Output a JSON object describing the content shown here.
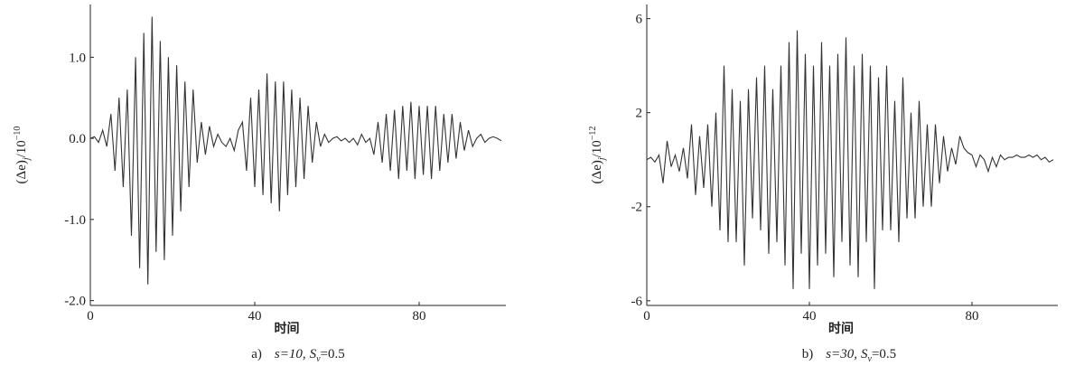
{
  "chart_data": [
    {
      "type": "line",
      "color": "#333333",
      "ylabel": {
        "main": "(Δe)",
        "sub": "j",
        "base": "/10",
        "sup": "−10"
      },
      "xlabel": "时间",
      "caption": {
        "label": "a)",
        "param1": "s=10,",
        "param2": "S",
        "param2_sub": "v",
        "param2_value": "=0.5"
      },
      "xlim": [
        0,
        100
      ],
      "xticks": [
        0,
        40,
        80
      ],
      "ylim": [
        -2.06,
        1.65
      ],
      "yticks": [
        {
          "value": 1,
          "label": "1.0"
        },
        {
          "value": 0,
          "label": "0.0"
        },
        {
          "value": -1,
          "label": "-1.0"
        },
        {
          "value": -2,
          "label": "-2.0"
        }
      ],
      "x": [
        0,
        1,
        2,
        3,
        4,
        5,
        6,
        7,
        8,
        9,
        10,
        11,
        12,
        13,
        14,
        15,
        16,
        17,
        18,
        19,
        20,
        21,
        22,
        23,
        24,
        25,
        26,
        27,
        28,
        29,
        30,
        31,
        32,
        33,
        34,
        35,
        36,
        37,
        38,
        39,
        40,
        41,
        42,
        43,
        44,
        45,
        46,
        47,
        48,
        49,
        50,
        51,
        52,
        53,
        54,
        55,
        56,
        57,
        58,
        59,
        60,
        61,
        62,
        63,
        64,
        65,
        66,
        67,
        68,
        69,
        70,
        71,
        72,
        73,
        74,
        75,
        76,
        77,
        78,
        79,
        80,
        81,
        82,
        83,
        84,
        85,
        86,
        87,
        88,
        89,
        90,
        91,
        92,
        93,
        94,
        95,
        96,
        97,
        98,
        99,
        100
      ],
      "values": [
        0.0,
        0.02,
        -0.05,
        0.1,
        -0.1,
        0.3,
        -0.4,
        0.5,
        -0.6,
        0.6,
        -1.2,
        1.0,
        -1.6,
        1.3,
        -1.8,
        1.5,
        -1.4,
        1.2,
        -1.5,
        1.0,
        -1.2,
        0.9,
        -0.9,
        0.7,
        -0.6,
        0.6,
        -0.3,
        0.2,
        -0.2,
        0.15,
        -0.1,
        0.05,
        -0.05,
        -0.1,
        0.0,
        -0.15,
        0.1,
        0.2,
        -0.4,
        0.5,
        -0.6,
        0.6,
        -0.7,
        0.8,
        -0.8,
        0.7,
        -0.9,
        0.7,
        -0.7,
        0.6,
        -0.6,
        0.5,
        -0.5,
        0.4,
        -0.3,
        0.2,
        -0.1,
        0.05,
        -0.05,
        0.0,
        0.02,
        -0.03,
        0.0,
        -0.05,
        0.0,
        -0.08,
        0.05,
        -0.05,
        0.0,
        -0.2,
        0.2,
        -0.3,
        0.3,
        -0.4,
        0.35,
        -0.5,
        0.4,
        -0.4,
        0.45,
        -0.5,
        0.4,
        -0.45,
        0.4,
        -0.5,
        0.4,
        -0.4,
        0.3,
        -0.3,
        0.3,
        -0.25,
        0.2,
        -0.15,
        0.1,
        -0.1,
        0.0,
        0.05,
        -0.05,
        0.0,
        0.02,
        0.0,
        -0.03
      ]
    },
    {
      "type": "line",
      "color": "#333333",
      "ylabel": {
        "main": "(Δe)",
        "sub": "j",
        "base": "/10",
        "sup": "−12"
      },
      "xlabel": "时间",
      "caption": {
        "label": "b)",
        "param1": "s=30,",
        "param2": "S",
        "param2_sub": "v",
        "param2_value": "=0.5"
      },
      "xlim": [
        0,
        100
      ],
      "xticks": [
        0,
        40,
        80
      ],
      "ylim": [
        -6.2,
        6.6
      ],
      "yticks": [
        6,
        2,
        -2,
        -6
      ],
      "x": [
        0,
        1,
        2,
        3,
        4,
        5,
        6,
        7,
        8,
        9,
        10,
        11,
        12,
        13,
        14,
        15,
        16,
        17,
        18,
        19,
        20,
        21,
        22,
        23,
        24,
        25,
        26,
        27,
        28,
        29,
        30,
        31,
        32,
        33,
        34,
        35,
        36,
        37,
        38,
        39,
        40,
        41,
        42,
        43,
        44,
        45,
        46,
        47,
        48,
        49,
        50,
        51,
        52,
        53,
        54,
        55,
        56,
        57,
        58,
        59,
        60,
        61,
        62,
        63,
        64,
        65,
        66,
        67,
        68,
        69,
        70,
        71,
        72,
        73,
        74,
        75,
        76,
        77,
        78,
        79,
        80,
        81,
        82,
        83,
        84,
        85,
        86,
        87,
        88,
        89,
        90,
        91,
        92,
        93,
        94,
        95,
        96,
        97,
        98,
        99,
        100
      ],
      "values": [
        0,
        0.1,
        -0.1,
        0.2,
        -1,
        0.8,
        -0.3,
        0.2,
        -0.5,
        0.5,
        -0.8,
        1.5,
        -1.5,
        1,
        -1.2,
        1.5,
        -2,
        2,
        -3,
        4,
        -3.5,
        3,
        -3.5,
        2.5,
        -4.5,
        3,
        -2.5,
        3.5,
        -3,
        4,
        -4,
        3,
        -3.5,
        4,
        -4.5,
        5,
        -5.5,
        5.5,
        -4,
        4.5,
        -5.5,
        4,
        -4.5,
        5,
        -4,
        4,
        -5,
        4.5,
        -3.5,
        5.2,
        -4.5,
        4,
        -5,
        4.5,
        -3.5,
        4,
        -5.5,
        3.5,
        -3,
        4,
        -3,
        2.5,
        -3.5,
        3.5,
        -2.5,
        2,
        -2.5,
        2.5,
        -2,
        1.5,
        -2,
        1.5,
        -1,
        1,
        -0.5,
        0.5,
        -0.2,
        1,
        0.5,
        0.3,
        0.2,
        -0.3,
        0.2,
        0,
        -0.5,
        0.1,
        -0.3,
        0.2,
        0,
        0.1,
        0.1,
        0.2,
        0.1,
        0.1,
        0.2,
        0.1,
        0.2,
        0.0,
        0.1,
        -0.1,
        0.0
      ]
    }
  ]
}
